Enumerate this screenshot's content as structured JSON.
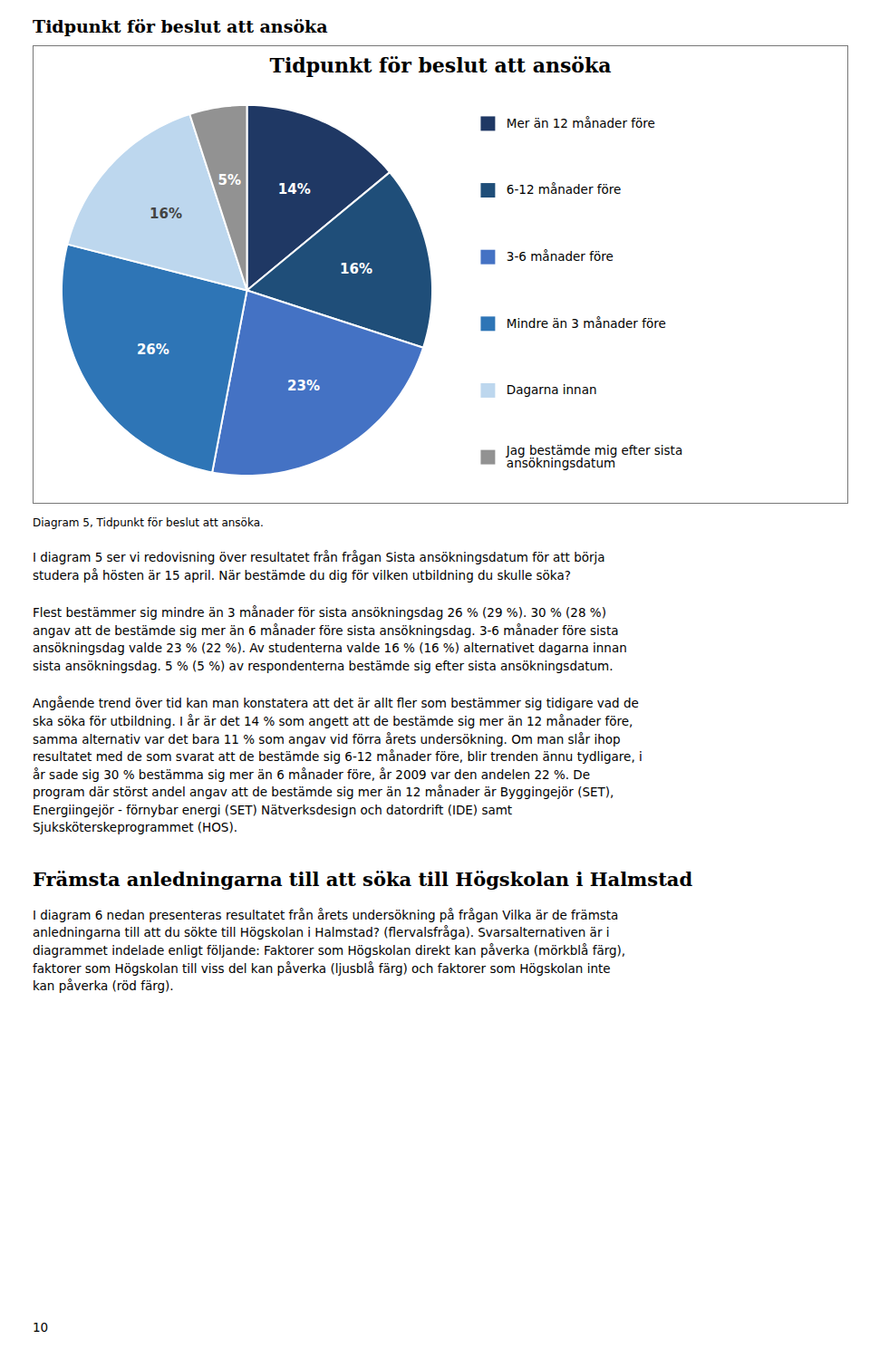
{
  "chart_data": {
    "type": "pie",
    "title": "Tidpunkt för beslut att ansöka",
    "categories": [
      "Mer än 12 månader före",
      "6-12 månader före",
      "3-6 månader före",
      "Mindre än 3 månader före",
      "Dagarna innan",
      "Jag bestämde mig efter sista\nansökningsdatum"
    ],
    "values": [
      14,
      16,
      23,
      26,
      16,
      5
    ],
    "value_labels": [
      "14%",
      "16%",
      "23%",
      "26%",
      "16%",
      "5%"
    ],
    "colors": [
      "#1f3864",
      "#1f4e79",
      "#4472c4",
      "#2e75b6",
      "#bdd7ee",
      "#929292"
    ],
    "data_labels": true,
    "legend": "right"
  },
  "heading": "Tidpunkt för beslut att ansöka",
  "caption": "Diagram 5, Tidpunkt för beslut att ansöka.",
  "paragraphs": [
    "I diagram 5 ser vi redovisning över resultatet från frågan Sista ansökningsdatum för att börja\nstudera på hösten är 15 april. När bestämde du dig för vilken utbildning du skulle söka?",
    "Flest bestämmer sig mindre än 3 månader för sista ansökningsdag 26 % (29 %). 30 % (28 %)\nangav att de bestämde sig mer än 6 månader före sista ansökningsdag. 3-6 månader före sista\nansökningsdag valde 23 % (22 %). Av studenterna valde 16 % (16 %) alternativet dagarna innan\nsista ansökningsdag. 5 % (5 %) av respondenterna bestämde sig efter sista ansökningsdatum.",
    "Angående trend över tid kan man konstatera att det är allt fler som bestämmer sig tidigare vad de\nska söka för utbildning. I år är det 14 % som angett att de bestämde sig mer än 12 månader före,\nsamma alternativ var det bara 11 % som angav vid förra årets undersökning. Om man slår ihop\nresultatet med de som svarat att de bestämde sig 6-12 månader före, blir trenden ännu tydligare, i\når sade sig 30 % bestämma sig mer än 6 månader före, år 2009 var den andelen 22 %. De\nprogram där störst andel angav att de bestämde sig mer än 12 månader är Byggingejör (SET),\nEnergiingejör - förnybar energi (SET) Nätverksdesign och datordrift (IDE) samt\nSjuksköterskeprogrammet (HOS)."
  ],
  "section_title": "Främsta anledningarna till att söka till Högskolan i Halmstad",
  "section_paragraph": "I diagram 6 nedan presenteras resultatet från årets undersökning på frågan Vilka är de främsta\nanledningarna till att du sökte till Högskolan i Halmstad? (flervalsfråga). Svarsalternativen är i\ndiagrammet indelade enligt följande: Faktorer som Högskolan direkt kan påverka (mörkblå färg),\nfaktorer som Högskolan till viss del kan påverka (ljusblå färg) och faktorer som Högskolan inte\nkan påverka (röd färg).",
  "page_number": "10"
}
